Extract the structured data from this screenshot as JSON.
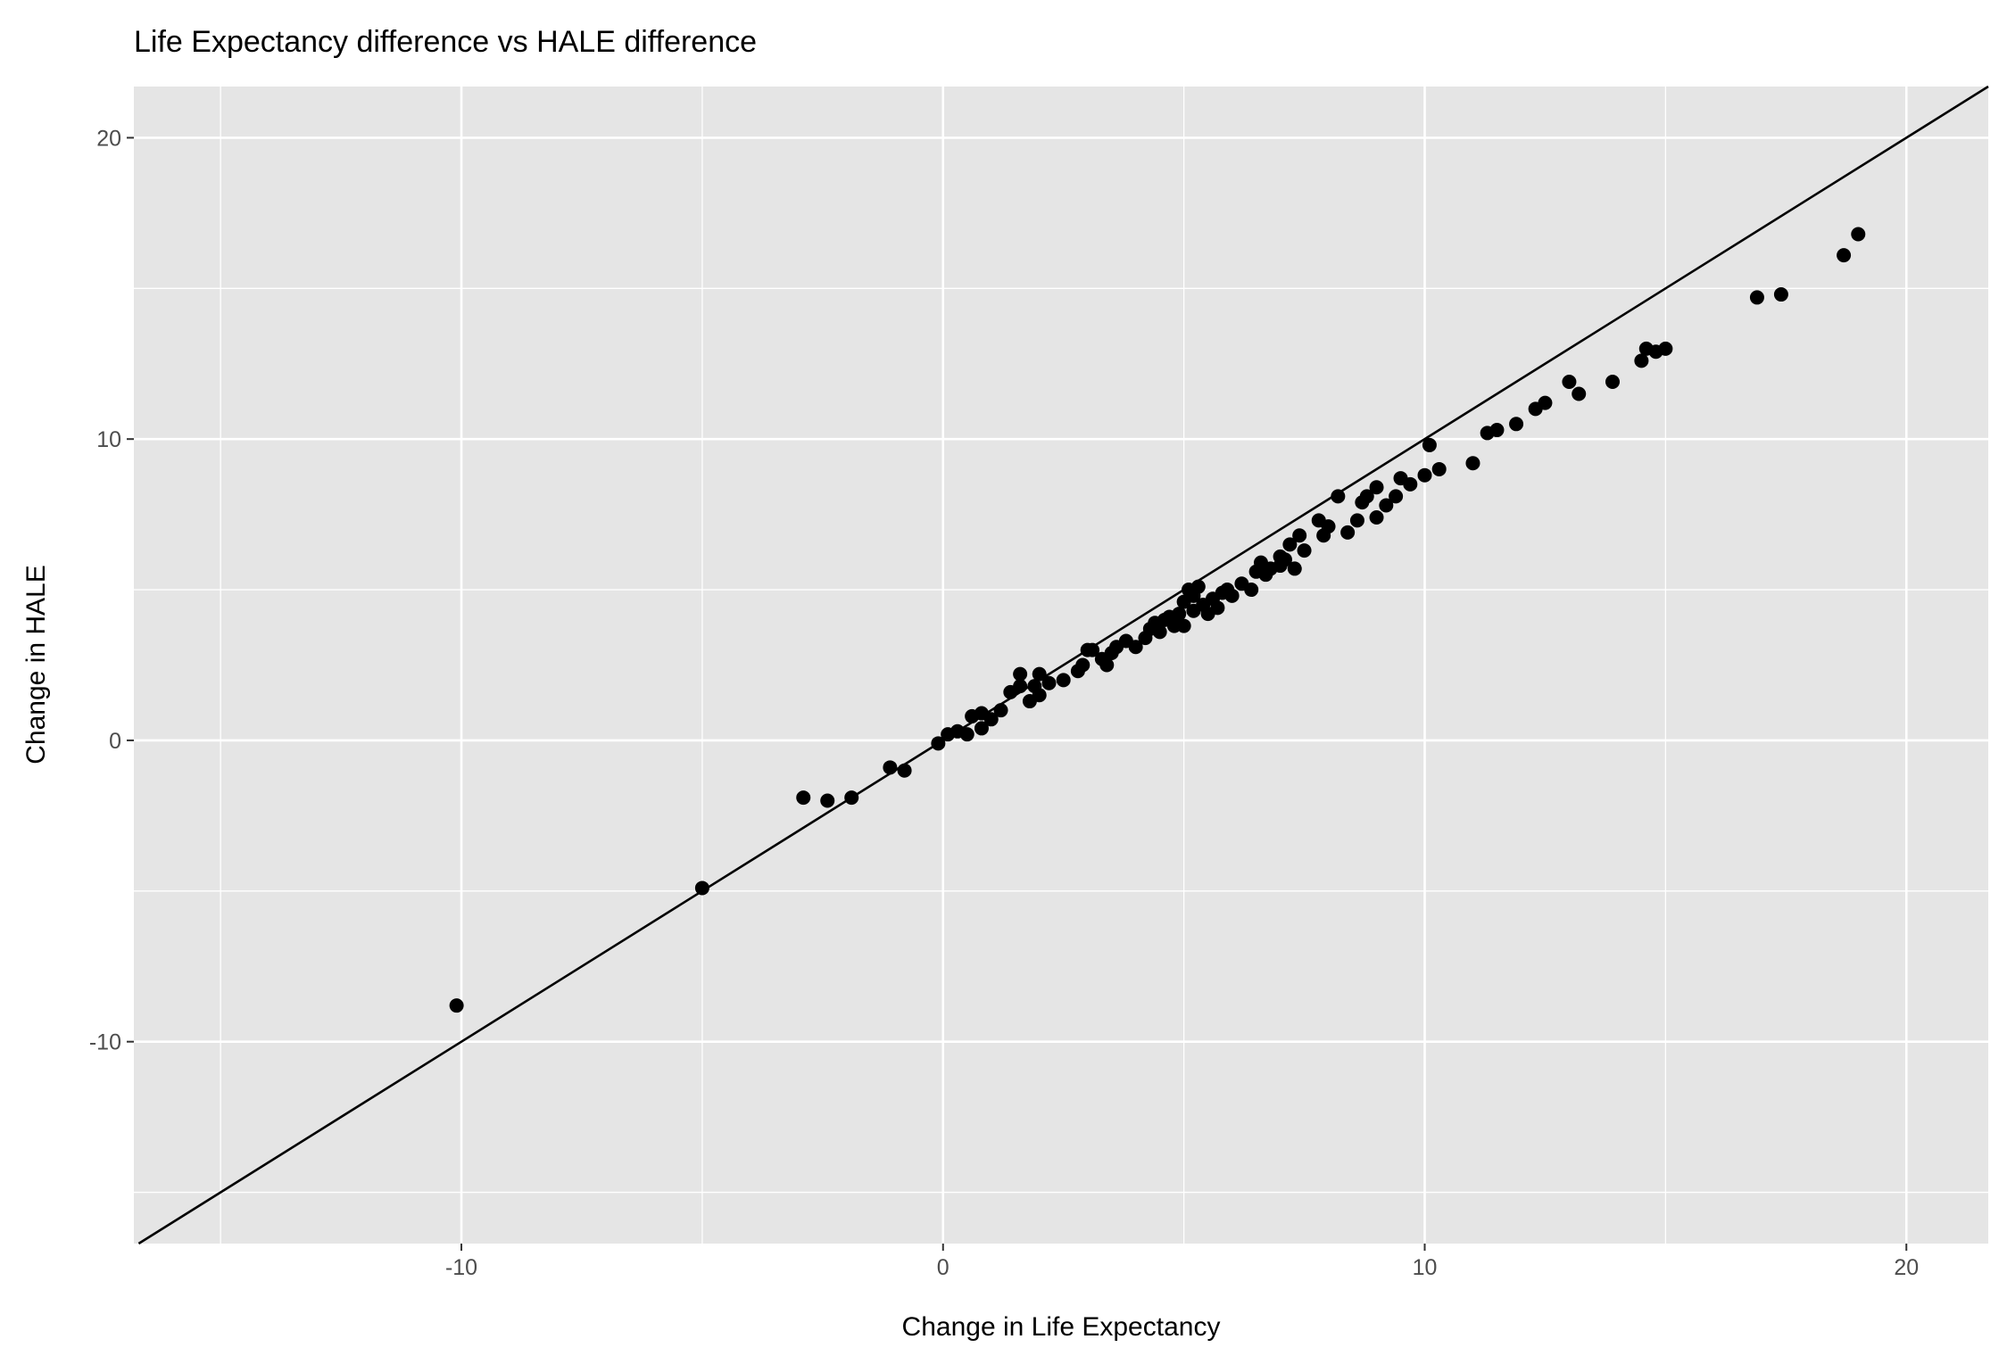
{
  "chart_data": {
    "type": "scatter",
    "title": "Life Expectancy difference vs HALE difference",
    "xlabel": "Change in Life Expectancy",
    "ylabel": "Change in HALE",
    "xlim": [
      -16.8,
      21.7
    ],
    "ylim": [
      -16.7,
      21.7
    ],
    "x_ticks": [
      -10,
      0,
      10,
      20
    ],
    "x_tick_labels": [
      "-10",
      "0",
      "10",
      "20"
    ],
    "y_ticks": [
      -10,
      0,
      10,
      20
    ],
    "y_tick_labels": [
      "-10",
      "0",
      "10",
      "20"
    ],
    "grid": true,
    "panel_background": "#e5e5e5",
    "grid_color": "#ffffff",
    "point_color": "#000000",
    "reference_line": {
      "type": "identity",
      "slope": 1,
      "intercept": 0,
      "color": "#000000"
    },
    "series": [
      {
        "points": [
          [
            -10.1,
            -8.8
          ],
          [
            -5.0,
            -4.9
          ],
          [
            -2.9,
            -1.9
          ],
          [
            -2.4,
            -2.0
          ],
          [
            -1.9,
            -1.9
          ],
          [
            -1.1,
            -0.9
          ],
          [
            -0.8,
            -1.0
          ],
          [
            -0.1,
            -0.1
          ],
          [
            0.1,
            0.2
          ],
          [
            0.3,
            0.3
          ],
          [
            0.5,
            0.2
          ],
          [
            0.6,
            0.8
          ],
          [
            0.8,
            0.4
          ],
          [
            0.8,
            0.9
          ],
          [
            1.0,
            0.7
          ],
          [
            1.2,
            1.0
          ],
          [
            1.4,
            1.6
          ],
          [
            1.6,
            1.8
          ],
          [
            1.6,
            2.2
          ],
          [
            1.8,
            1.3
          ],
          [
            1.9,
            1.8
          ],
          [
            2.0,
            2.2
          ],
          [
            2.0,
            1.5
          ],
          [
            2.2,
            1.9
          ],
          [
            2.5,
            2.0
          ],
          [
            2.8,
            2.3
          ],
          [
            2.9,
            2.5
          ],
          [
            3.0,
            3.0
          ],
          [
            3.1,
            3.0
          ],
          [
            3.3,
            2.7
          ],
          [
            3.4,
            2.5
          ],
          [
            3.5,
            2.9
          ],
          [
            3.6,
            3.1
          ],
          [
            3.8,
            3.3
          ],
          [
            4.0,
            3.1
          ],
          [
            4.2,
            3.4
          ],
          [
            4.3,
            3.7
          ],
          [
            4.4,
            3.9
          ],
          [
            4.5,
            3.6
          ],
          [
            4.6,
            4.0
          ],
          [
            4.7,
            4.1
          ],
          [
            4.8,
            3.8
          ],
          [
            4.9,
            4.2
          ],
          [
            5.0,
            4.6
          ],
          [
            5.0,
            3.8
          ],
          [
            5.1,
            5.0
          ],
          [
            5.2,
            4.3
          ],
          [
            5.2,
            4.8
          ],
          [
            5.3,
            5.1
          ],
          [
            5.4,
            4.5
          ],
          [
            5.5,
            4.2
          ],
          [
            5.6,
            4.7
          ],
          [
            5.7,
            4.4
          ],
          [
            5.8,
            4.9
          ],
          [
            5.9,
            5.0
          ],
          [
            6.0,
            4.8
          ],
          [
            6.2,
            5.2
          ],
          [
            6.4,
            5.0
          ],
          [
            6.5,
            5.6
          ],
          [
            6.6,
            5.9
          ],
          [
            6.7,
            5.5
          ],
          [
            6.8,
            5.7
          ],
          [
            7.0,
            5.8
          ],
          [
            7.0,
            6.1
          ],
          [
            7.1,
            6.0
          ],
          [
            7.2,
            6.5
          ],
          [
            7.3,
            5.7
          ],
          [
            7.4,
            6.8
          ],
          [
            7.5,
            6.3
          ],
          [
            7.8,
            7.3
          ],
          [
            7.9,
            6.8
          ],
          [
            8.0,
            7.1
          ],
          [
            8.2,
            8.1
          ],
          [
            8.4,
            6.9
          ],
          [
            8.6,
            7.3
          ],
          [
            8.7,
            7.9
          ],
          [
            8.8,
            8.1
          ],
          [
            9.0,
            8.4
          ],
          [
            9.0,
            7.4
          ],
          [
            9.2,
            7.8
          ],
          [
            9.4,
            8.1
          ],
          [
            9.5,
            8.7
          ],
          [
            9.7,
            8.5
          ],
          [
            10.0,
            8.8
          ],
          [
            10.1,
            9.8
          ],
          [
            10.3,
            9.0
          ],
          [
            11.0,
            9.2
          ],
          [
            11.3,
            10.2
          ],
          [
            11.5,
            10.3
          ],
          [
            11.9,
            10.5
          ],
          [
            12.3,
            11.0
          ],
          [
            12.5,
            11.2
          ],
          [
            13.0,
            11.9
          ],
          [
            13.2,
            11.5
          ],
          [
            13.9,
            11.9
          ],
          [
            14.5,
            12.6
          ],
          [
            14.6,
            13.0
          ],
          [
            14.8,
            12.9
          ],
          [
            15.0,
            13.0
          ],
          [
            16.9,
            14.7
          ],
          [
            17.4,
            14.8
          ],
          [
            18.7,
            16.1
          ],
          [
            19.0,
            16.8
          ]
        ]
      }
    ]
  }
}
